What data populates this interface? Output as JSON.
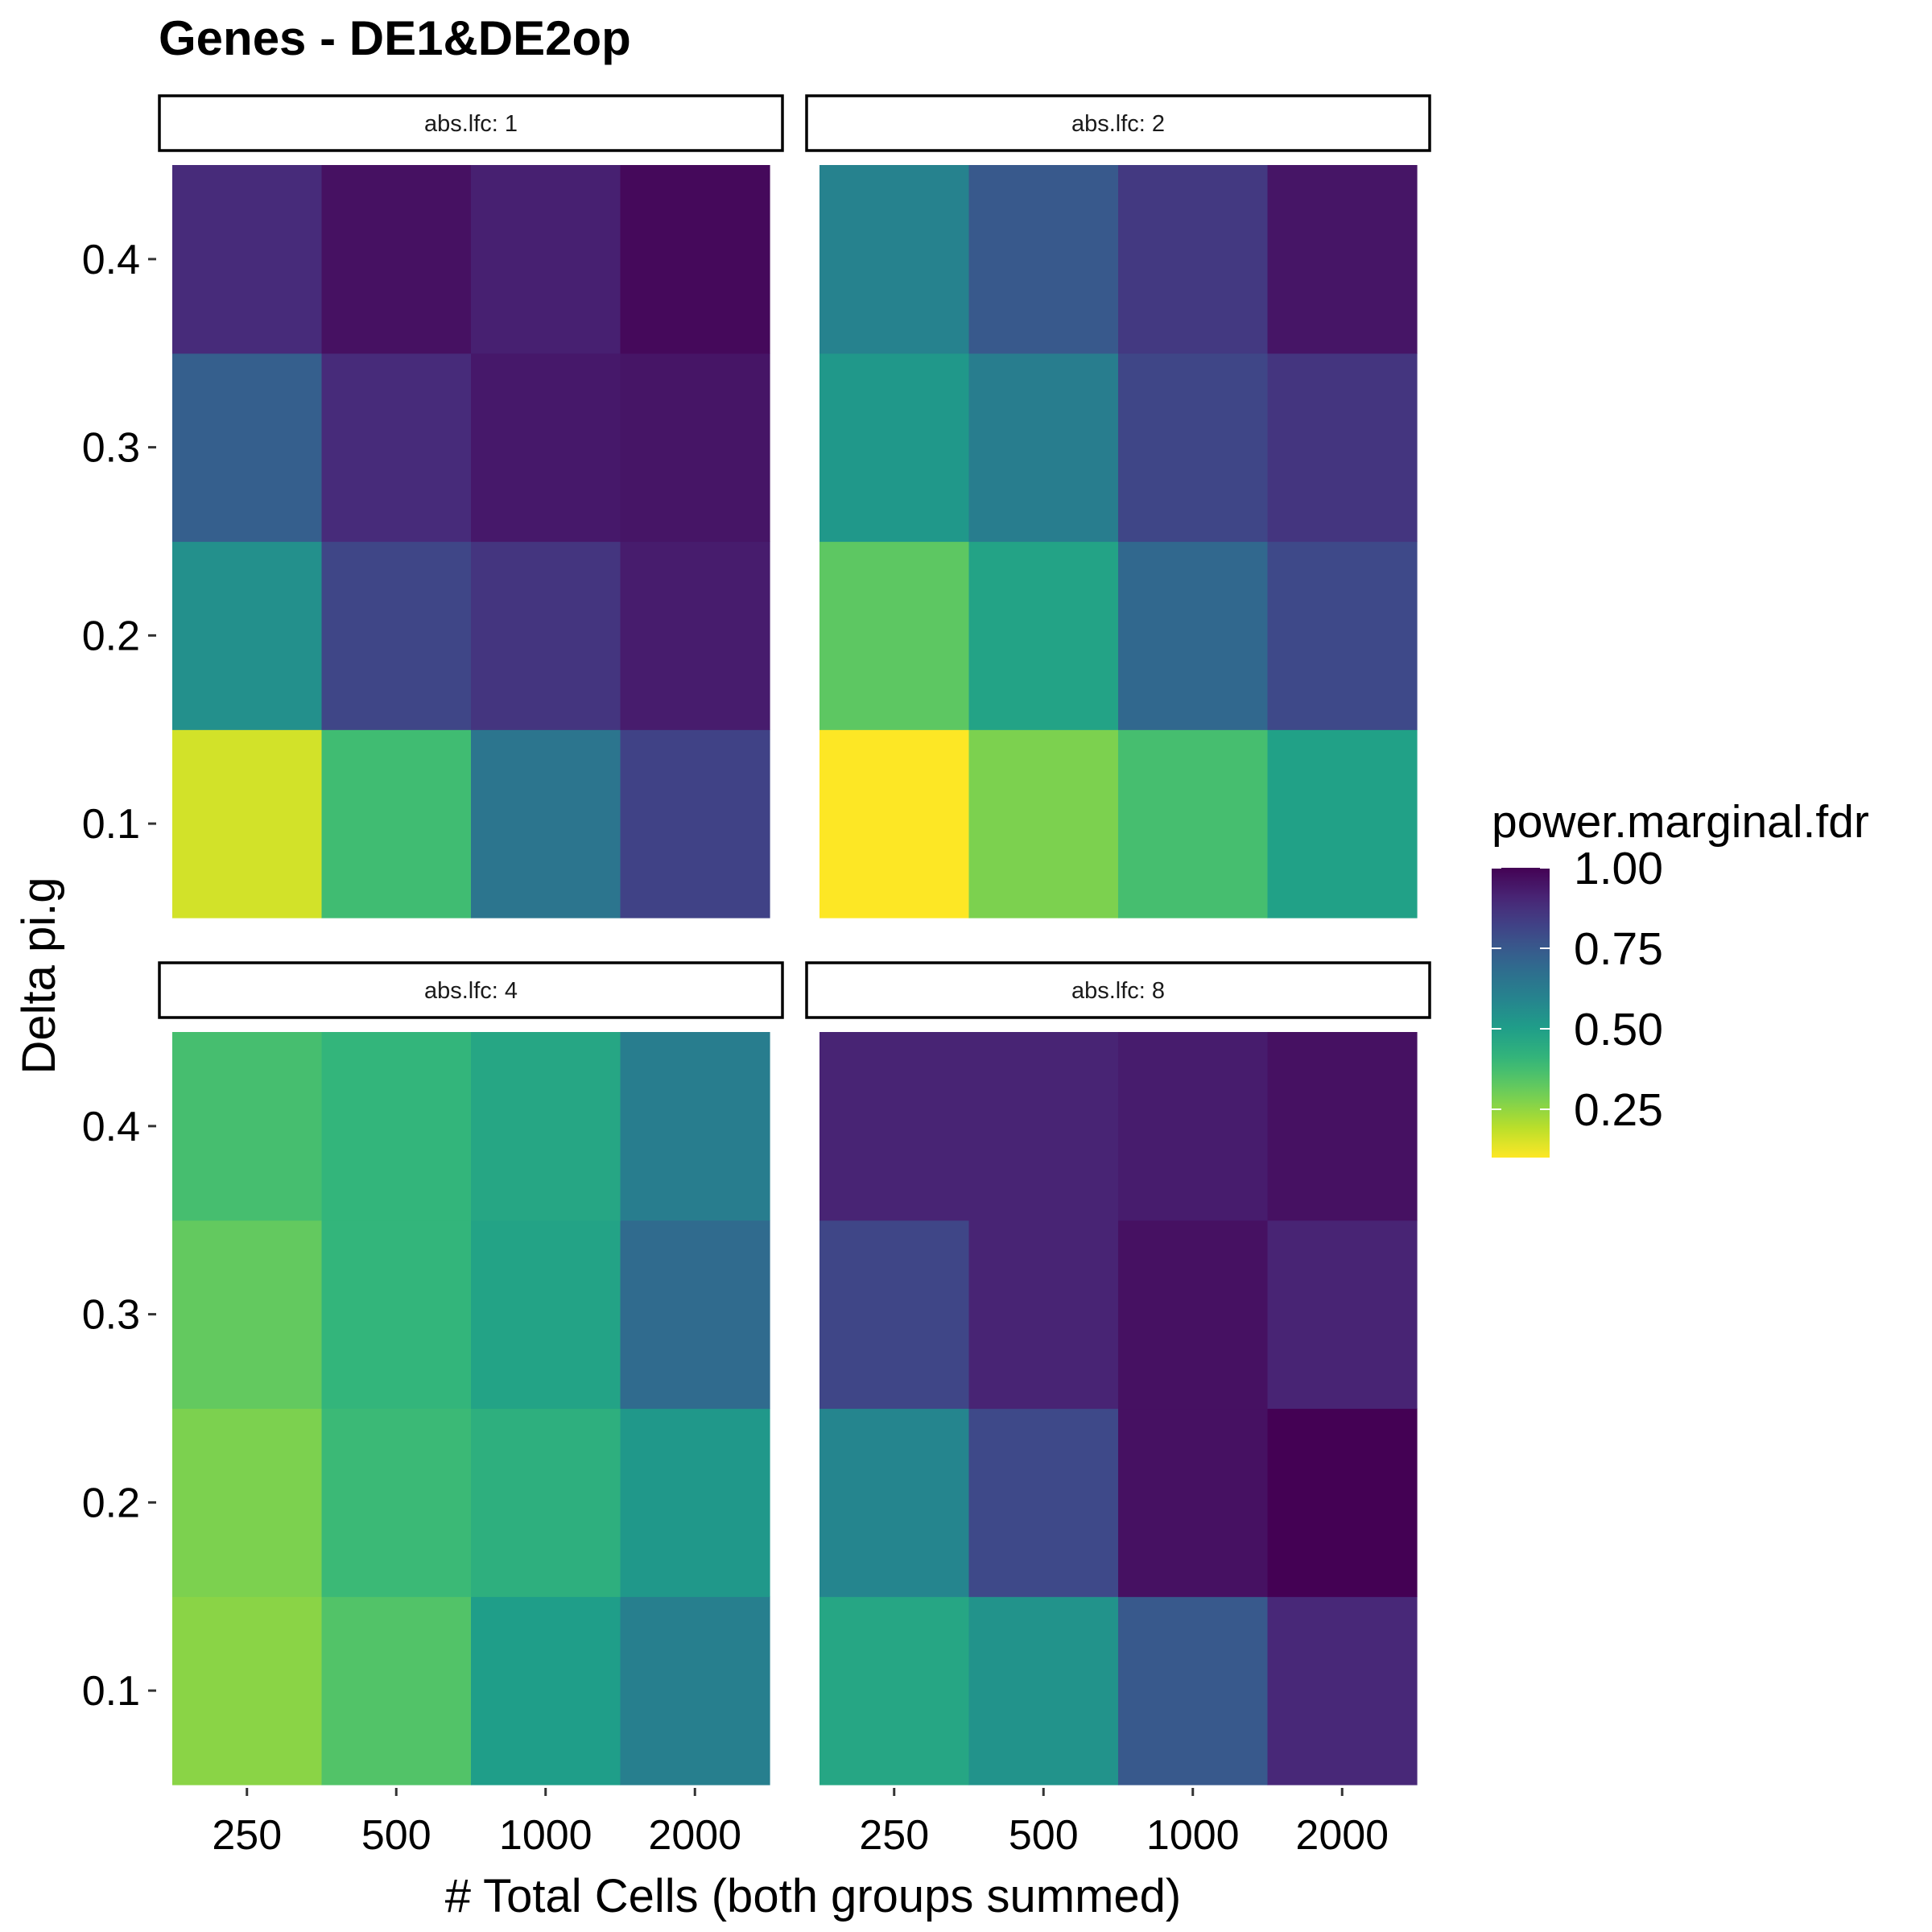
{
  "chart_data": {
    "type": "heatmap",
    "title": "Genes - DE1&DE2op",
    "xlabel": "# Total Cells (both groups summed)",
    "ylabel": "Delta pi.g",
    "x_categories": [
      "250",
      "500",
      "1000",
      "2000"
    ],
    "y_categories": [
      "0.1",
      "0.2",
      "0.3",
      "0.4"
    ],
    "legend": {
      "title": "power.marginal.fdr",
      "placement": "right",
      "range": [
        0.1,
        1.0
      ],
      "ticks": [
        "1.00",
        "0.75",
        "0.50",
        "0.25"
      ],
      "tick_values": [
        1.0,
        0.75,
        0.5,
        0.25
      ]
    },
    "colormap": "viridis (reversed: high = dark purple, low = yellow)",
    "facet_label_prefix": "abs.lfc: ",
    "panels": [
      {
        "strip": "abs.lfc: 1",
        "values_by_y": {
          "0.1": [
            0.16,
            0.38,
            0.65,
            0.82
          ],
          "0.2": [
            0.55,
            0.81,
            0.86,
            0.93
          ],
          "0.3": [
            0.73,
            0.89,
            0.94,
            0.95
          ],
          "0.4": [
            0.89,
            0.96,
            0.92,
            0.98
          ]
        }
      },
      {
        "strip": "abs.lfc: 2",
        "values_by_y": {
          "0.1": [
            0.1,
            0.28,
            0.37,
            0.49
          ],
          "0.2": [
            0.33,
            0.48,
            0.7,
            0.8
          ],
          "0.3": [
            0.52,
            0.62,
            0.81,
            0.86
          ],
          "0.4": [
            0.6,
            0.75,
            0.85,
            0.95
          ]
        }
      },
      {
        "strip": "abs.lfc: 4",
        "values_by_y": {
          "0.1": [
            0.26,
            0.35,
            0.5,
            0.61
          ],
          "0.2": [
            0.28,
            0.39,
            0.43,
            0.52
          ],
          "0.3": [
            0.32,
            0.41,
            0.48,
            0.69
          ],
          "0.4": [
            0.37,
            0.41,
            0.47,
            0.62
          ]
        }
      },
      {
        "strip": "abs.lfc: 8",
        "values_by_y": {
          "0.1": [
            0.47,
            0.54,
            0.75,
            0.9
          ],
          "0.2": [
            0.59,
            0.8,
            0.96,
            1.0
          ],
          "0.3": [
            0.81,
            0.91,
            0.96,
            0.91
          ],
          "0.4": [
            0.91,
            0.91,
            0.93,
            0.96
          ]
        }
      }
    ]
  }
}
